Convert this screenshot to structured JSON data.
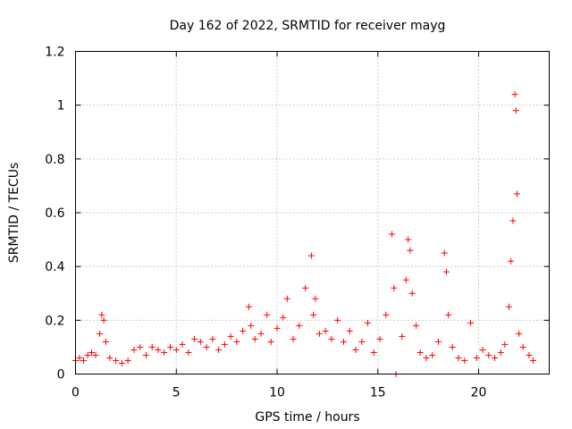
{
  "chart_data": {
    "type": "scatter",
    "title": "Day 162 of 2022, SRMTID for receiver mayg",
    "xlabel": "GPS time / hours",
    "ylabel": "SRMTID / TECUs",
    "xlim": [
      0,
      23.5
    ],
    "ylim": [
      0,
      1.2
    ],
    "x_ticks": [
      "0",
      "5",
      "10",
      "15",
      "20"
    ],
    "y_ticks": [
      "0",
      "0.2",
      "0.4",
      "0.6",
      "0.8",
      "1",
      "1.2"
    ],
    "grid": true,
    "marker": "+",
    "marker_color": "#ff0000",
    "series": [
      {
        "name": "SRMTID",
        "x": [
          0.0,
          0.2,
          0.4,
          0.6,
          0.8,
          1.0,
          1.2,
          1.3,
          1.4,
          1.5,
          1.7,
          2.0,
          2.3,
          2.6,
          2.9,
          3.2,
          3.5,
          3.8,
          4.1,
          4.4,
          4.7,
          5.0,
          5.3,
          5.6,
          5.9,
          6.2,
          6.5,
          6.8,
          7.1,
          7.4,
          7.7,
          8.0,
          8.3,
          8.6,
          8.7,
          8.9,
          9.2,
          9.5,
          9.7,
          10.0,
          10.3,
          10.5,
          10.8,
          11.1,
          11.4,
          11.7,
          11.8,
          11.9,
          12.1,
          12.4,
          12.7,
          13.0,
          13.3,
          13.6,
          13.9,
          14.2,
          14.5,
          14.8,
          15.1,
          15.4,
          15.7,
          15.8,
          15.9,
          16.2,
          16.4,
          16.5,
          16.6,
          16.7,
          16.9,
          17.1,
          17.4,
          17.7,
          18.0,
          18.3,
          18.4,
          18.5,
          18.7,
          19.0,
          19.3,
          19.6,
          19.9,
          20.2,
          20.5,
          20.8,
          21.1,
          21.3,
          21.5,
          21.6,
          21.7,
          21.8,
          21.85,
          21.9,
          22.0,
          22.2,
          22.5,
          22.7
        ],
        "y": [
          0.05,
          0.06,
          0.05,
          0.07,
          0.08,
          0.07,
          0.15,
          0.22,
          0.2,
          0.12,
          0.06,
          0.05,
          0.04,
          0.05,
          0.09,
          0.1,
          0.07,
          0.1,
          0.09,
          0.08,
          0.1,
          0.09,
          0.11,
          0.08,
          0.13,
          0.12,
          0.1,
          0.13,
          0.09,
          0.11,
          0.14,
          0.12,
          0.16,
          0.25,
          0.18,
          0.13,
          0.15,
          0.22,
          0.12,
          0.17,
          0.21,
          0.28,
          0.13,
          0.18,
          0.32,
          0.44,
          0.22,
          0.28,
          0.15,
          0.16,
          0.13,
          0.2,
          0.12,
          0.16,
          0.09,
          0.12,
          0.19,
          0.08,
          0.13,
          0.22,
          0.52,
          0.32,
          0.0,
          0.14,
          0.35,
          0.5,
          0.46,
          0.3,
          0.18,
          0.08,
          0.06,
          0.07,
          0.12,
          0.45,
          0.38,
          0.22,
          0.1,
          0.06,
          0.05,
          0.19,
          0.06,
          0.09,
          0.07,
          0.06,
          0.08,
          0.11,
          0.25,
          0.42,
          0.57,
          1.04,
          0.98,
          0.67,
          0.15,
          0.1,
          0.07,
          0.05
        ]
      }
    ]
  }
}
